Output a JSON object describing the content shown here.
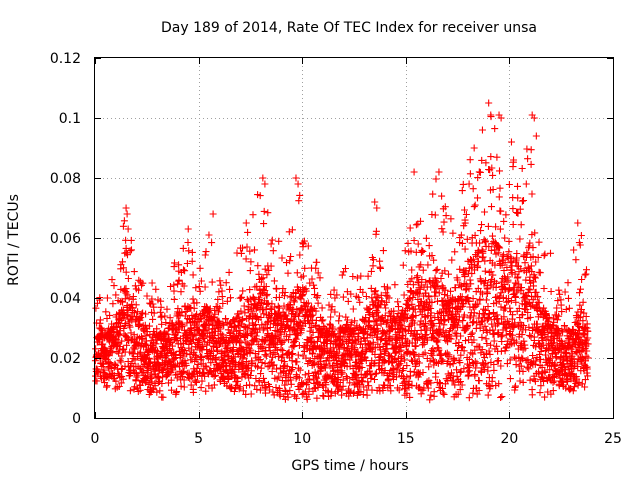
{
  "chart_data": {
    "type": "scatter",
    "title": "Day 189 of 2014, Rate Of TEC Index for receiver unsa",
    "xlabel": "GPS time / hours",
    "ylabel": "ROTI / TECUs",
    "xlim": [
      0,
      25
    ],
    "ylim": [
      0,
      0.12
    ],
    "x_ticks": [
      0,
      5,
      10,
      15,
      20,
      25
    ],
    "x_tick_labels": [
      "0",
      "5",
      "10",
      "15",
      "20",
      "25"
    ],
    "y_ticks": [
      0,
      0.02,
      0.04,
      0.06,
      0.08,
      0.1,
      0.12
    ],
    "y_tick_labels": [
      "0",
      "0.02",
      "0.04",
      "0.06",
      "0.08",
      "0.1",
      "0.12"
    ],
    "grid": true,
    "marker": "plus",
    "series": [
      {
        "name": "ROTI",
        "color": "#ff0000",
        "envelope_hours": [
          0,
          0.5,
          1,
          1.5,
          2,
          2.5,
          3,
          3.5,
          4,
          4.5,
          5,
          5.5,
          6,
          6.5,
          7,
          7.5,
          8,
          8.5,
          9,
          9.5,
          10,
          10.5,
          11,
          11.5,
          12,
          12.5,
          13,
          13.5,
          14,
          14.5,
          15,
          15.5,
          16,
          16.5,
          17,
          17.5,
          18,
          18.5,
          19,
          19.5,
          20,
          20.5,
          21,
          21.5,
          22,
          22.5,
          23,
          23.5,
          23.8
        ],
        "envelope_low": [
          0.01,
          0.01,
          0.009,
          0.009,
          0.008,
          0.007,
          0.006,
          0.006,
          0.007,
          0.007,
          0.008,
          0.008,
          0.008,
          0.008,
          0.008,
          0.007,
          0.007,
          0.007,
          0.006,
          0.006,
          0.006,
          0.006,
          0.006,
          0.007,
          0.007,
          0.007,
          0.007,
          0.008,
          0.008,
          0.008,
          0.007,
          0.006,
          0.006,
          0.006,
          0.006,
          0.006,
          0.006,
          0.006,
          0.005,
          0.004,
          0.008,
          0.007,
          0.006,
          0.006,
          0.006,
          0.007,
          0.008,
          0.01,
          0.01
        ],
        "envelope_high": [
          0.038,
          0.046,
          0.048,
          0.07,
          0.055,
          0.048,
          0.045,
          0.05,
          0.055,
          0.062,
          0.055,
          0.06,
          0.055,
          0.05,
          0.058,
          0.065,
          0.08,
          0.065,
          0.058,
          0.065,
          0.08,
          0.058,
          0.05,
          0.045,
          0.052,
          0.048,
          0.047,
          0.072,
          0.055,
          0.055,
          0.06,
          0.082,
          0.07,
          0.082,
          0.07,
          0.065,
          0.09,
          0.095,
          0.105,
          0.101,
          0.092,
          0.082,
          0.101,
          0.06,
          0.055,
          0.05,
          0.045,
          0.065,
          0.045
        ],
        "values": [
          [
            0.1,
            0.021
          ],
          [
            0.3,
            0.03
          ],
          [
            0.6,
            0.04
          ],
          [
            0.9,
            0.024
          ],
          [
            1.2,
            0.028
          ],
          [
            1.5,
            0.07
          ],
          [
            1.55,
            0.068
          ],
          [
            1.6,
            0.063
          ],
          [
            2.0,
            0.033
          ],
          [
            2.6,
            0.022
          ],
          [
            3.2,
            0.016
          ],
          [
            3.8,
            0.03
          ],
          [
            4.3,
            0.044
          ],
          [
            4.5,
            0.063
          ],
          [
            5.0,
            0.029
          ],
          [
            5.5,
            0.061
          ],
          [
            5.7,
            0.068
          ],
          [
            6.3,
            0.024
          ],
          [
            7.0,
            0.04
          ],
          [
            7.3,
            0.065
          ],
          [
            8.1,
            0.08
          ],
          [
            8.2,
            0.078
          ],
          [
            8.5,
            0.058
          ],
          [
            9.0,
            0.031
          ],
          [
            9.7,
            0.08
          ],
          [
            9.8,
            0.078
          ],
          [
            10.5,
            0.036
          ],
          [
            11.2,
            0.027
          ],
          [
            11.8,
            0.034
          ],
          [
            12.6,
            0.025
          ],
          [
            13.5,
            0.072
          ],
          [
            13.6,
            0.07
          ],
          [
            14.2,
            0.035
          ],
          [
            15.4,
            0.082
          ],
          [
            15.6,
            0.058
          ],
          [
            16.6,
            0.082
          ],
          [
            16.8,
            0.062
          ],
          [
            17.5,
            0.046
          ],
          [
            18.3,
            0.09
          ],
          [
            18.7,
            0.096
          ],
          [
            19.0,
            0.105
          ],
          [
            19.1,
            0.101
          ],
          [
            19.5,
            0.101
          ],
          [
            19.6,
            0.1
          ],
          [
            19.8,
            0.03
          ],
          [
            20.1,
            0.092
          ],
          [
            20.2,
            0.086
          ],
          [
            21.1,
            0.101
          ],
          [
            21.2,
            0.1
          ],
          [
            21.3,
            0.094
          ],
          [
            22.0,
            0.03
          ],
          [
            22.5,
            0.022
          ],
          [
            23.1,
            0.056
          ],
          [
            23.3,
            0.065
          ],
          [
            23.7,
            0.024
          ]
        ]
      }
    ]
  }
}
